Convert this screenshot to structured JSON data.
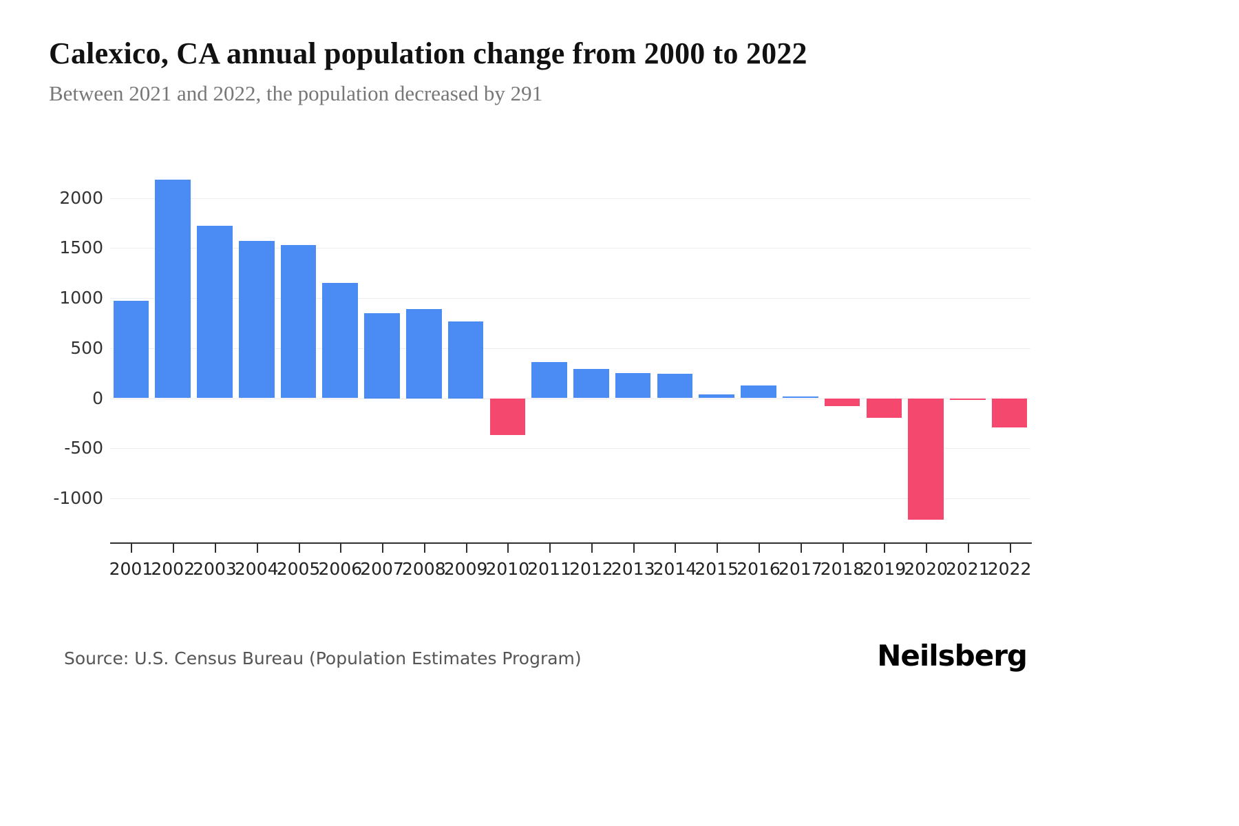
{
  "chart_data": {
    "type": "bar",
    "title": "Calexico, CA annual population change from 2000 to 2022",
    "subtitle": "Between 2021 and 2022, the population decreased by 291",
    "categories": [
      "2001",
      "2002",
      "2003",
      "2004",
      "2005",
      "2006",
      "2007",
      "2008",
      "2009",
      "2010",
      "2011",
      "2012",
      "2013",
      "2014",
      "2015",
      "2016",
      "2017",
      "2018",
      "2019",
      "2020",
      "2021",
      "2022"
    ],
    "values": [
      970,
      2180,
      1720,
      1570,
      1530,
      1150,
      850,
      890,
      770,
      -370,
      360,
      290,
      250,
      245,
      35,
      130,
      15,
      -80,
      -195,
      -1215,
      -10,
      -291
    ],
    "xlabel": "",
    "ylabel": "",
    "yticks": [
      2000,
      1500,
      1000,
      500,
      0,
      -500,
      -1000
    ],
    "ylim": [
      -1440,
      2430
    ],
    "grid": true,
    "legend": false,
    "positive_color": "#4b8bf4",
    "negative_color": "#f5486e"
  },
  "footer": {
    "source": "Source: U.S. Census Bureau (Population Estimates Program)",
    "brand": "Neilsberg"
  }
}
